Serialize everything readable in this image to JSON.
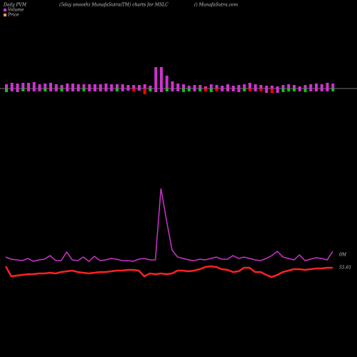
{
  "chart_data": {
    "type": "pvm",
    "title": "Daily PVM",
    "subtitle": "(5day smooth) MunafaSutra(TM) charts for MSLC",
    "source": "() MunafaSutra.com",
    "legend": [
      {
        "name": "Volume",
        "color": "#cc33cc"
      },
      {
        "name": "Price",
        "color": "#ff9966"
      }
    ],
    "bars_up": {
      "color": "#cc33cc",
      "values": [
        6,
        8,
        7,
        8,
        8,
        9,
        6,
        7,
        8,
        6,
        5,
        7,
        7,
        6,
        6,
        6,
        6,
        6,
        7,
        6,
        6,
        6,
        5,
        5,
        5,
        6,
        4,
        30,
        30,
        18,
        10,
        7,
        6,
        4,
        5,
        5,
        3,
        6,
        5,
        4,
        6,
        4,
        5,
        6,
        8,
        6,
        5,
        4,
        4,
        3,
        5,
        6,
        5,
        3,
        5,
        6,
        7,
        6,
        8,
        7
      ]
    },
    "bars_down": {
      "values": [
        5,
        4,
        5,
        4,
        4,
        4,
        4,
        4,
        4,
        4,
        4,
        4,
        4,
        4,
        4,
        4,
        4,
        4,
        4,
        4,
        4,
        4,
        3,
        4,
        3,
        8,
        4,
        5,
        5,
        4,
        4,
        4,
        5,
        4,
        4,
        4,
        4,
        5,
        4,
        4,
        4,
        4,
        5,
        4,
        4,
        4,
        4,
        6,
        6,
        6,
        5,
        4,
        4,
        4,
        5,
        4,
        4,
        4,
        4,
        4
      ],
      "colors": [
        "#00cc00",
        "#cc33cc",
        "#cc33cc",
        "#00cc00",
        "#cc33cc",
        "#cc33cc",
        "#cc33cc",
        "#00cc00",
        "#cc33cc",
        "#cc33cc",
        "#00cc00",
        "#cc33cc",
        "#cc33cc",
        "#cc33cc",
        "#00cc00",
        "#cc33cc",
        "#cc33cc",
        "#cc33cc",
        "#cc33cc",
        "#cc33cc",
        "#00cc00",
        "#cc33cc",
        "#cc33cc",
        "#ff0000",
        "#cc33cc",
        "#ff0000",
        "#00cc00",
        "#cc33cc",
        "#cc33cc",
        "#00cc00",
        "#cc33cc",
        "#cc33cc",
        "#00cc00",
        "#00cc00",
        "#cc33cc",
        "#00cc00",
        "#ff0000",
        "#00cc00",
        "#ff0000",
        "#cc33cc",
        "#cc33cc",
        "#cc33cc",
        "#cc33cc",
        "#00cc00",
        "#ff0000",
        "#cc33cc",
        "#ff0000",
        "#cc33cc",
        "#ff0000",
        "#cc33cc",
        "#00cc00",
        "#00cc00",
        "#00cc00",
        "#cc33cc",
        "#00cc00",
        "#cc33cc",
        "#cc33cc",
        "#cc33cc",
        "#cc33cc",
        "#00cc00"
      ]
    },
    "series": [
      {
        "name": "Volume",
        "color": "#cc33cc",
        "label": "0M",
        "values": [
          8,
          5,
          4,
          3,
          6,
          2,
          4,
          5,
          10,
          3,
          3,
          15,
          4,
          3,
          8,
          2,
          9,
          3,
          4,
          6,
          5,
          3,
          3,
          2,
          5,
          6,
          4,
          4,
          104,
          60,
          18,
          8,
          6,
          4,
          3,
          5,
          4,
          6,
          8,
          5,
          5,
          10,
          6,
          8,
          6,
          4,
          3,
          6,
          10,
          16,
          8,
          6,
          4,
          11,
          3,
          5,
          7,
          6,
          4,
          16
        ]
      },
      {
        "name": "Price",
        "color": "#ff2222",
        "label": "55.61",
        "values": [
          22,
          8,
          9,
          10,
          11,
          11,
          12,
          12,
          13,
          12,
          14,
          15,
          16,
          14,
          13,
          12,
          13,
          14,
          14,
          15,
          16,
          16,
          17,
          17,
          16,
          8,
          12,
          11,
          12,
          11,
          12,
          16,
          16,
          15,
          16,
          18,
          21,
          22,
          21,
          18,
          17,
          14,
          15,
          20,
          20,
          14,
          14,
          10,
          7,
          10,
          14,
          16,
          18,
          18,
          17,
          18,
          19,
          19,
          20,
          20
        ]
      }
    ]
  }
}
